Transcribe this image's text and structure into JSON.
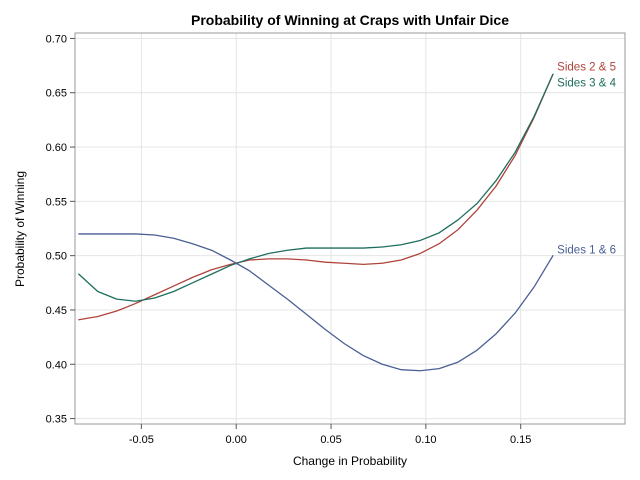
{
  "chart_data": {
    "type": "line",
    "title": "Probability of Winning at Craps with Unfair Dice",
    "xlabel": "Change in Probability",
    "ylabel": "Probability of Winning",
    "xlim": [
      -0.085,
      0.205
    ],
    "ylim": [
      0.345,
      0.705
    ],
    "x_ticks": [
      -0.05,
      0.0,
      0.05,
      0.1,
      0.15
    ],
    "x_tick_labels": [
      "-0.05",
      "0.00",
      "0.05",
      "0.10",
      "0.15"
    ],
    "y_ticks": [
      0.35,
      0.4,
      0.45,
      0.5,
      0.55,
      0.6,
      0.65,
      0.7
    ],
    "y_tick_labels": [
      "0.35",
      "0.40",
      "0.45",
      "0.50",
      "0.55",
      "0.60",
      "0.65",
      "0.70"
    ],
    "grid": true,
    "legend": "inline labels at line ends",
    "series": [
      {
        "name": "Sides 2 & 5",
        "color": "#b0433b",
        "x": [
          -0.083,
          -0.073,
          -0.063,
          -0.053,
          -0.043,
          -0.033,
          -0.023,
          -0.013,
          -0.003,
          0.007,
          0.017,
          0.027,
          0.037,
          0.047,
          0.057,
          0.067,
          0.077,
          0.087,
          0.097,
          0.107,
          0.117,
          0.127,
          0.137,
          0.147,
          0.157,
          0.167
        ],
        "y": [
          0.441,
          0.444,
          0.449,
          0.456,
          0.464,
          0.472,
          0.48,
          0.487,
          0.492,
          0.496,
          0.497,
          0.497,
          0.496,
          0.494,
          0.493,
          0.492,
          0.493,
          0.496,
          0.502,
          0.511,
          0.524,
          0.542,
          0.564,
          0.592,
          0.627,
          0.667
        ]
      },
      {
        "name": "Sides 3 & 4",
        "color": "#1e6e5e",
        "x": [
          -0.083,
          -0.073,
          -0.063,
          -0.053,
          -0.043,
          -0.033,
          -0.023,
          -0.013,
          -0.003,
          0.007,
          0.017,
          0.027,
          0.037,
          0.047,
          0.057,
          0.067,
          0.077,
          0.087,
          0.097,
          0.107,
          0.117,
          0.127,
          0.137,
          0.147,
          0.157,
          0.167
        ],
        "y": [
          0.483,
          0.467,
          0.46,
          0.458,
          0.461,
          0.467,
          0.475,
          0.483,
          0.491,
          0.497,
          0.502,
          0.505,
          0.507,
          0.507,
          0.507,
          0.507,
          0.508,
          0.51,
          0.514,
          0.521,
          0.533,
          0.548,
          0.569,
          0.595,
          0.628,
          0.667
        ]
      },
      {
        "name": "Sides 1 & 6",
        "color": "#4a5f94",
        "x": [
          -0.083,
          -0.073,
          -0.063,
          -0.053,
          -0.043,
          -0.033,
          -0.023,
          -0.013,
          -0.003,
          0.007,
          0.017,
          0.027,
          0.037,
          0.047,
          0.057,
          0.067,
          0.077,
          0.087,
          0.097,
          0.107,
          0.117,
          0.127,
          0.137,
          0.147,
          0.157,
          0.167
        ],
        "y": [
          0.52,
          0.52,
          0.52,
          0.52,
          0.519,
          0.516,
          0.511,
          0.505,
          0.496,
          0.486,
          0.473,
          0.46,
          0.446,
          0.432,
          0.419,
          0.408,
          0.4,
          0.395,
          0.394,
          0.396,
          0.402,
          0.413,
          0.428,
          0.447,
          0.471,
          0.5
        ]
      }
    ],
    "line_labels": [
      {
        "text": "Sides 2 & 5",
        "color": "#b0433b"
      },
      {
        "text": "Sides 3 & 4",
        "color": "#1e6e5e"
      },
      {
        "text": "Sides 1 & 6",
        "color": "#4a5f94"
      }
    ]
  }
}
